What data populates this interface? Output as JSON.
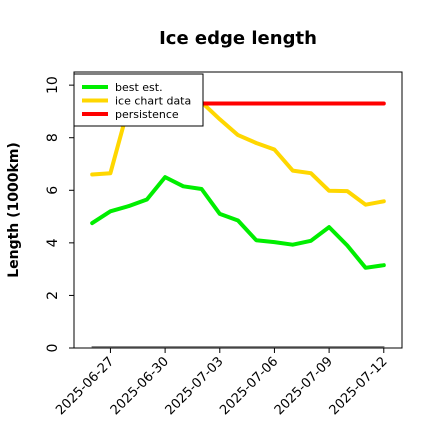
{
  "chart_data": {
    "type": "line",
    "title": "Ice edge length",
    "xlabel": "",
    "ylabel": "Length (1000km)",
    "ylim": [
      0,
      10.5
    ],
    "xlim": [
      "2025-06-25",
      "2025-07-13"
    ],
    "yticks": [
      0,
      2,
      4,
      6,
      8,
      10
    ],
    "xticks": [
      "2025-06-27",
      "2025-06-30",
      "2025-07-03",
      "2025-07-06",
      "2025-07-09",
      "2025-07-12"
    ],
    "grid": false,
    "legend": "top-left",
    "series": [
      {
        "name": "best est.",
        "color": "#00ee00",
        "x": [
          "2025-06-26",
          "2025-06-27",
          "2025-06-28",
          "2025-06-29",
          "2025-06-30",
          "2025-07-01",
          "2025-07-02",
          "2025-07-03",
          "2025-07-04",
          "2025-07-05",
          "2025-07-06",
          "2025-07-07",
          "2025-07-08",
          "2025-07-09",
          "2025-07-10",
          "2025-07-11",
          "2025-07-12"
        ],
        "values": [
          4.75,
          5.2,
          5.4,
          5.65,
          6.5,
          6.15,
          6.05,
          5.1,
          4.85,
          4.1,
          4.03,
          3.93,
          4.08,
          4.6,
          3.9,
          3.05,
          3.15
        ]
      },
      {
        "name": "ice chart data",
        "color": "#ffd700",
        "x": [
          "2025-06-26",
          "2025-06-27",
          "2025-06-28",
          "2025-06-29",
          "2025-06-30",
          "2025-07-01",
          "2025-07-02",
          "2025-07-03",
          "2025-07-04",
          "2025-07-05",
          "2025-07-06",
          "2025-07-07",
          "2025-07-08",
          "2025-07-09",
          "2025-07-10",
          "2025-07-11",
          "2025-07-12"
        ],
        "values": [
          6.6,
          6.65,
          9.2,
          9.5,
          9.6,
          9.5,
          9.35,
          8.7,
          8.1,
          7.8,
          7.55,
          6.75,
          6.65,
          5.98,
          5.97,
          5.45,
          5.58
        ]
      },
      {
        "name": "persistence",
        "color": "#ff0000",
        "x": [
          "2025-07-02",
          "2025-07-12"
        ],
        "values": [
          9.3,
          9.3
        ]
      },
      {
        "name": "",
        "color": "#888888",
        "x": [
          "2025-06-26",
          "2025-07-12"
        ],
        "values": [
          0.05,
          0.05
        ]
      }
    ]
  }
}
